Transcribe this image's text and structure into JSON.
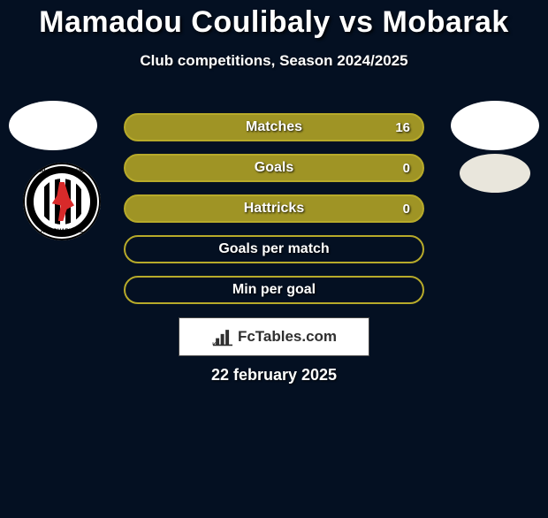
{
  "title": "Mamadou Coulibaly vs Mobarak",
  "subtitle": "Club competitions, Season 2024/2025",
  "date": "22 february 2025",
  "brand": "FcTables.com",
  "club_badge": {
    "top_text": "AL-JAZIRA CLUB",
    "bottom_text": "ABU DHABI-UAE"
  },
  "style": {
    "background_color": "#041022",
    "title_color": "#ffffff",
    "title_fontsize": 34,
    "subtitle_fontsize": 17,
    "stat_label_fontsize": 16,
    "text_shadow": "1px 1px 2px rgba(0,0,0,0.8)"
  },
  "stats": [
    {
      "label": "Matches",
      "right_value": "16",
      "fill": "#9f9425",
      "border": "#b7aa2a"
    },
    {
      "label": "Goals",
      "right_value": "0",
      "fill": "#9f9425",
      "border": "#b7aa2a"
    },
    {
      "label": "Hattricks",
      "right_value": "0",
      "fill": "#9f9425",
      "border": "#b7aa2a"
    },
    {
      "label": "Goals per match",
      "right_value": "",
      "fill": "transparent",
      "border": "#b7aa2a"
    },
    {
      "label": "Min per goal",
      "right_value": "",
      "fill": "transparent",
      "border": "#b7aa2a"
    }
  ]
}
